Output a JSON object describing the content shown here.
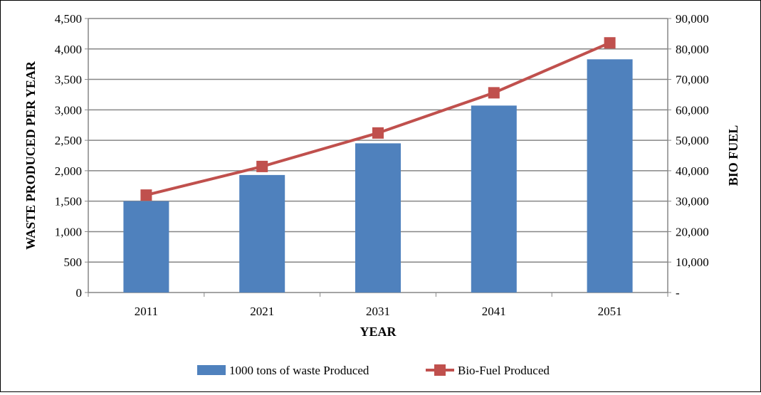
{
  "chart_data": {
    "type": "bar+line",
    "categories": [
      "2011",
      "2021",
      "2031",
      "2041",
      "2051"
    ],
    "xlabel": "YEAR",
    "ylabel": "WASTE PRODUCED PER YEAR",
    "y2label": "BIO FUEL",
    "ylim": [
      0,
      4500
    ],
    "y2lim": [
      0,
      90000
    ],
    "yticks": [
      "0",
      "500",
      "1,000",
      "1,500",
      "2,000",
      "2,500",
      "3,000",
      "3,500",
      "4,000",
      "4,500"
    ],
    "y2ticks": [
      "-",
      "10,000",
      "20,000",
      "30,000",
      "40,000",
      "50,000",
      "60,000",
      "70,000",
      "80,000",
      "90,000"
    ],
    "grid": true,
    "legend_position": "bottom",
    "series": [
      {
        "name": "1000 tons of waste Produced",
        "type": "bar",
        "axis": "left",
        "color": "#4f81bd",
        "values": [
          1500,
          1930,
          2450,
          3070,
          3830
        ]
      },
      {
        "name": "Bio-Fuel Produced",
        "type": "line",
        "axis": "right",
        "color": "#c0504d",
        "marker": "square",
        "values": [
          32000,
          41400,
          52400,
          65600,
          82000
        ]
      }
    ]
  }
}
